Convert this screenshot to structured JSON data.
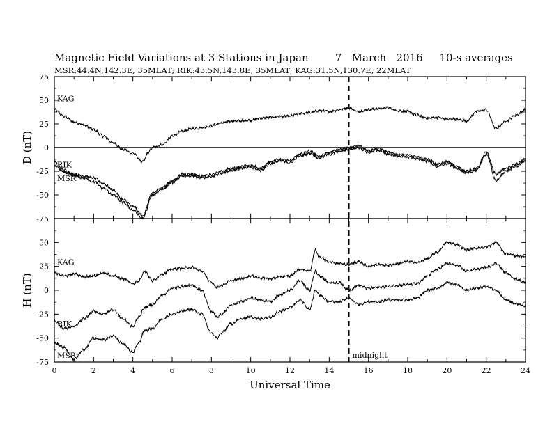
{
  "title": "Magnetic Field Variations at 3 Stations in Japan        7   March   2016     10-s averages",
  "subtitle": "MSR:44.4N,142.3E, 35MLAT;  RIK:43.5N,143.8E, 35MLAT;  KAG:31.5N,130.7E, 22MLAT",
  "chart_data": [
    {
      "type": "line",
      "panel": "D",
      "ylabel": "D (nT)",
      "xlabel": "",
      "xlim": [
        0,
        24
      ],
      "ylim": [
        -75,
        75
      ],
      "yticks": [
        "75",
        "50",
        "25",
        "0",
        "-25",
        "-50",
        "-75"
      ],
      "zero_line": true,
      "series": [
        {
          "name": "KAG",
          "x": [
            0,
            0.5,
            1,
            1.5,
            2,
            2.5,
            3,
            3.5,
            4,
            4.5,
            4.8,
            5,
            5.5,
            6,
            6.5,
            7,
            7.5,
            8,
            8.5,
            9,
            9.5,
            10,
            10.5,
            11,
            11.5,
            12,
            12.5,
            13,
            13.5,
            14,
            14.5,
            15,
            15.5,
            16,
            16.5,
            17,
            17.5,
            18,
            18.5,
            19,
            19.5,
            20,
            20.5,
            21,
            21.5,
            22,
            22.5,
            23,
            23.5,
            24
          ],
          "y": [
            40,
            33,
            27,
            24,
            19,
            12,
            5,
            -2,
            -6,
            -15,
            -5,
            0,
            3,
            12,
            17,
            20,
            21,
            23,
            26,
            28,
            28,
            29,
            31,
            32,
            33,
            33,
            36,
            37,
            39,
            38,
            40,
            42,
            38,
            40,
            41,
            42,
            39,
            38,
            34,
            31,
            32,
            30,
            30,
            28,
            38,
            40,
            20,
            28,
            34,
            40
          ]
        },
        {
          "name": "RIK",
          "x": [
            0,
            0.5,
            1,
            1.5,
            2,
            2.5,
            3,
            3.5,
            4,
            4.5,
            5,
            5.5,
            6,
            6.5,
            7,
            7.5,
            8,
            8.5,
            9,
            9.5,
            10,
            10.5,
            11,
            11.5,
            12,
            12.5,
            13,
            13.5,
            14,
            14.5,
            15,
            15.5,
            16,
            16.5,
            17,
            17.5,
            18,
            18.5,
            19,
            19.5,
            20,
            20.5,
            21,
            21.5,
            22,
            22.5,
            23,
            23.5,
            24
          ],
          "y": [
            -15,
            -24,
            -28,
            -30,
            -32,
            -38,
            -45,
            -55,
            -62,
            -72,
            -48,
            -42,
            -35,
            -28,
            -28,
            -30,
            -29,
            -25,
            -22,
            -20,
            -19,
            -22,
            -15,
            -12,
            -14,
            -7,
            -4,
            -9,
            -5,
            -2,
            0,
            2,
            -3,
            -1,
            -5,
            -7,
            -8,
            -10,
            -12,
            -18,
            -15,
            -20,
            -25,
            -22,
            -5,
            -28,
            -22,
            -18,
            -12
          ]
        },
        {
          "name": "MSR",
          "x": [
            0,
            0.5,
            1,
            1.5,
            2,
            2.5,
            3,
            3.5,
            4,
            4.5,
            5,
            5.5,
            6,
            6.5,
            7,
            7.5,
            8,
            8.5,
            9,
            9.5,
            10,
            10.5,
            11,
            11.5,
            12,
            12.5,
            13,
            13.5,
            14,
            14.5,
            15,
            15.5,
            16,
            16.5,
            17,
            17.5,
            18,
            18.5,
            19,
            19.5,
            20,
            20.5,
            21,
            21.5,
            22,
            22.5,
            23,
            23.5,
            24
          ],
          "y": [
            -19,
            -26,
            -30,
            -32,
            -36,
            -43,
            -50,
            -58,
            -66,
            -75,
            -50,
            -44,
            -37,
            -30,
            -30,
            -32,
            -31,
            -27,
            -24,
            -22,
            -21,
            -24,
            -17,
            -14,
            -16,
            -9,
            -6,
            -11,
            -7,
            -4,
            -2,
            0,
            -5,
            -3,
            -7,
            -9,
            -10,
            -12,
            -14,
            -20,
            -17,
            -22,
            -27,
            -24,
            -7,
            -35,
            -25,
            -20,
            -14
          ]
        }
      ]
    },
    {
      "type": "line",
      "panel": "H",
      "ylabel": "H (nT)",
      "xlabel": "Universal Time",
      "xlim": [
        0,
        24
      ],
      "ylim": [
        -75,
        75
      ],
      "xticks": [
        "0",
        "2",
        "4",
        "6",
        "8",
        "10",
        "12",
        "14",
        "16",
        "18",
        "20",
        "22",
        "24"
      ],
      "yticks": [
        "75",
        "50",
        "25",
        "0",
        "-25",
        "-50",
        "-75"
      ],
      "series": [
        {
          "name": "KAG",
          "x": [
            0,
            0.5,
            1,
            1.5,
            2,
            2.5,
            3,
            3.5,
            4,
            4.3,
            4.6,
            5,
            5.5,
            6,
            6.5,
            7,
            7.5,
            8,
            8.3,
            8.5,
            9,
            9.5,
            10,
            10.5,
            11,
            11.5,
            12,
            12.5,
            13,
            13.3,
            13.5,
            14,
            14.5,
            15,
            15.5,
            16,
            16.5,
            17,
            17.5,
            18,
            18.5,
            19,
            19.5,
            20,
            20.5,
            21,
            21.5,
            22,
            22.5,
            23,
            23.5,
            24
          ],
          "y": [
            18,
            15,
            17,
            14,
            15,
            18,
            15,
            12,
            7,
            10,
            20,
            10,
            17,
            22,
            23,
            24,
            20,
            8,
            3,
            5,
            10,
            12,
            15,
            13,
            12,
            14,
            15,
            22,
            20,
            42,
            35,
            30,
            28,
            27,
            30,
            25,
            27,
            26,
            28,
            30,
            29,
            33,
            40,
            50,
            48,
            42,
            44,
            45,
            50,
            38,
            36,
            35
          ]
        },
        {
          "name": "RIK",
          "x": [
            0,
            0.5,
            1,
            1.5,
            2,
            2.5,
            3,
            3.5,
            4,
            4.3,
            4.6,
            5,
            5.5,
            6,
            6.5,
            7,
            7.5,
            8,
            8.3,
            8.5,
            9,
            9.5,
            10,
            10.5,
            11,
            11.5,
            12,
            12.5,
            13,
            13.3,
            13.5,
            14,
            14.5,
            15,
            15.5,
            16,
            16.5,
            17,
            17.5,
            18,
            18.5,
            19,
            19.5,
            20,
            20.5,
            21,
            21.5,
            22,
            22.5,
            23,
            23.5,
            24
          ],
          "y": [
            -32,
            -40,
            -38,
            -30,
            -22,
            -25,
            -20,
            -30,
            -38,
            -28,
            -18,
            -15,
            -5,
            2,
            4,
            5,
            0,
            -22,
            -28,
            -25,
            -16,
            -12,
            -8,
            -10,
            -12,
            -5,
            0,
            10,
            0,
            20,
            15,
            8,
            8,
            0,
            5,
            2,
            3,
            4,
            5,
            6,
            7,
            15,
            22,
            28,
            26,
            20,
            22,
            24,
            28,
            18,
            12,
            8
          ]
        },
        {
          "name": "MSR",
          "x": [
            0,
            0.5,
            1,
            1.5,
            2,
            2.5,
            3,
            3.5,
            4,
            4.3,
            4.6,
            5,
            5.5,
            6,
            6.5,
            7,
            7.5,
            8,
            8.3,
            8.5,
            9,
            9.5,
            10,
            10.5,
            11,
            11.5,
            12,
            12.5,
            13,
            13.3,
            13.5,
            14,
            14.5,
            15,
            15.5,
            16,
            16.5,
            17,
            17.5,
            18,
            18.5,
            19,
            19.5,
            20,
            20.5,
            21,
            21.5,
            22,
            22.5,
            23,
            23.5,
            24
          ],
          "y": [
            -55,
            -60,
            -72,
            -62,
            -50,
            -52,
            -48,
            -56,
            -65,
            -55,
            -42,
            -40,
            -30,
            -25,
            -22,
            -20,
            -25,
            -45,
            -50,
            -45,
            -35,
            -30,
            -28,
            -30,
            -28,
            -22,
            -18,
            -10,
            -20,
            0,
            -5,
            -12,
            -12,
            -8,
            -15,
            -12,
            -12,
            -10,
            -10,
            -10,
            -8,
            0,
            2,
            8,
            6,
            0,
            2,
            4,
            0,
            -10,
            -14,
            -16
          ]
        }
      ]
    }
  ],
  "midnight_line": {
    "x": 15,
    "label": "midnight"
  },
  "colors": {
    "line": "#000000",
    "background": "#ffffff"
  }
}
